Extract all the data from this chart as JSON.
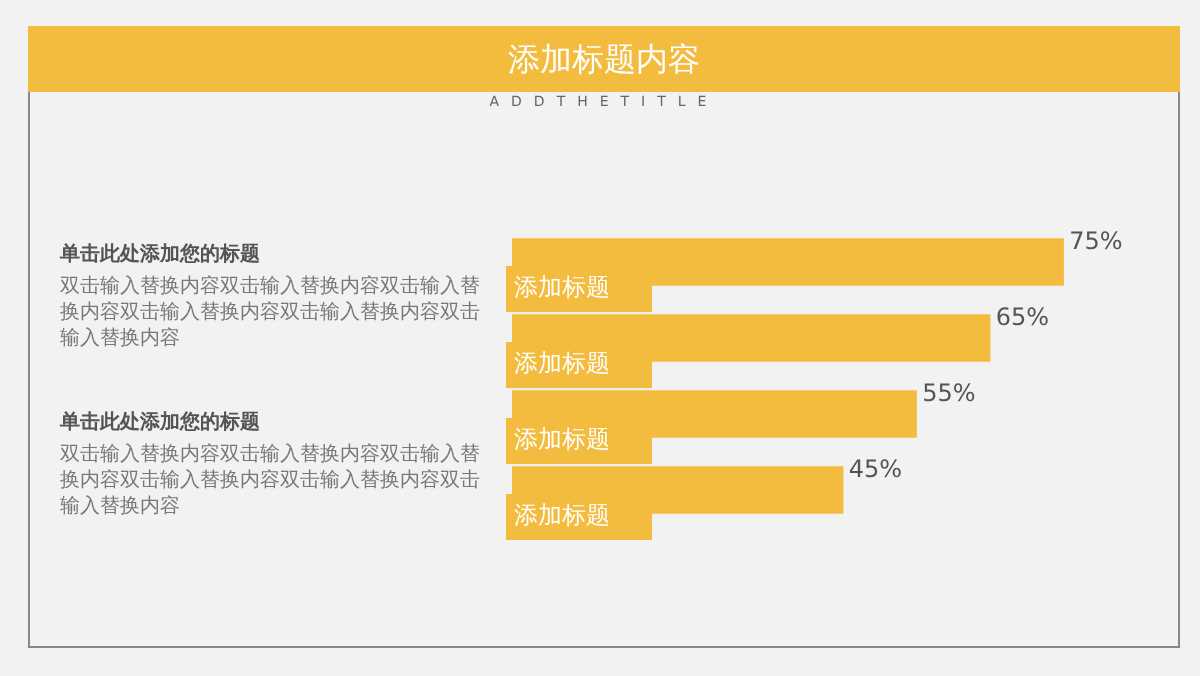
{
  "chart_data": {
    "type": "bar",
    "orientation": "horizontal",
    "title": "添加标题内容",
    "subtitle": "ADDTHETITLE",
    "categories": [
      "添加标题",
      "添加标题",
      "添加标题",
      "添加标题"
    ],
    "values": [
      75,
      65,
      55,
      45
    ],
    "value_labels": [
      "75%",
      "65%",
      "55%",
      "45%"
    ],
    "color": "#f3bc3f",
    "legend": false,
    "annotations": [
      "单击此处添加您的标题",
      "双击输入替换内容双击输入替换内容双击输入替换内容双击输入替换内容双击输入替换内容双击输入替换内容",
      "单击此处添加您的标题",
      "双击输入替换内容双击输入替换内容双击输入替换内容双击输入替换内容双击输入替换内容双击输入替换内容"
    ]
  }
}
